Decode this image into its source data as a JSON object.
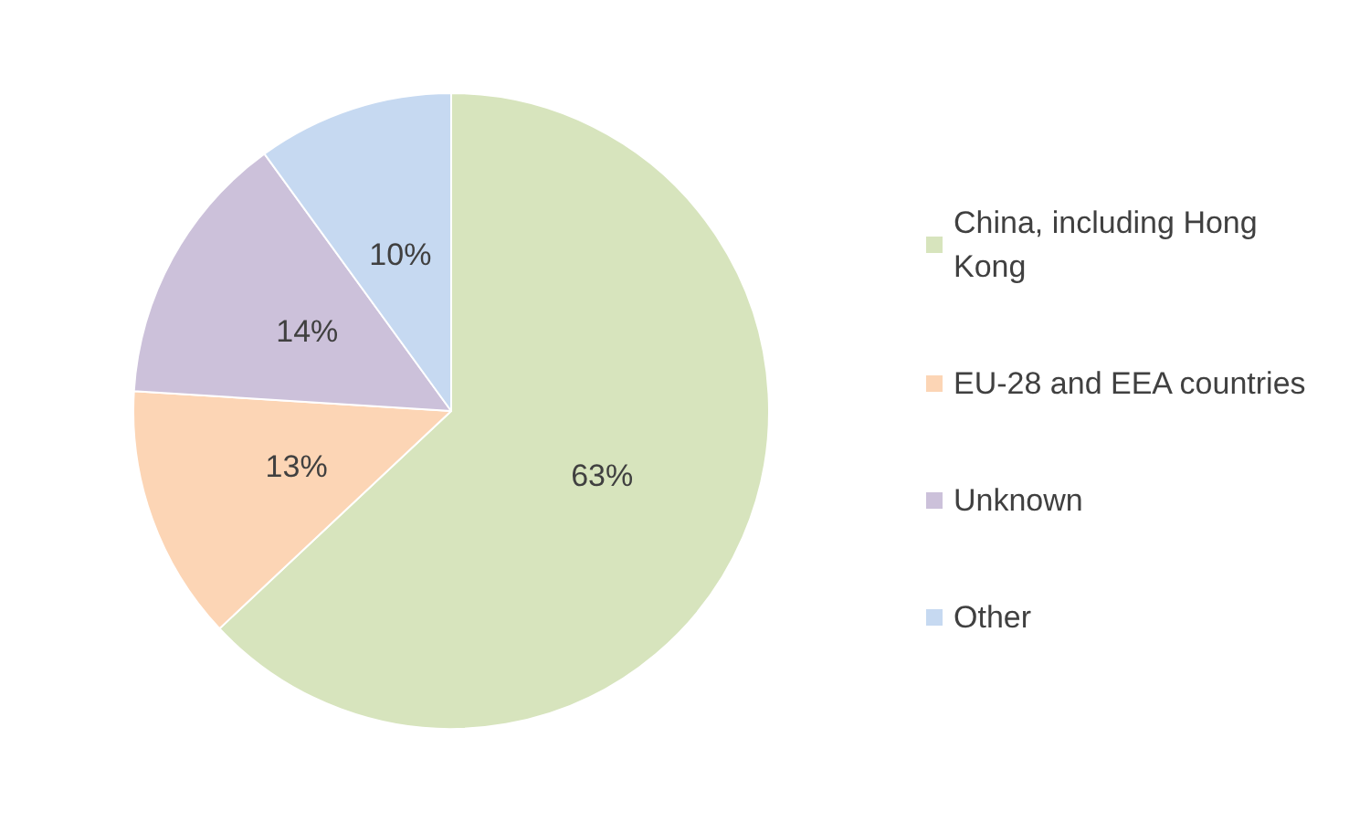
{
  "chart_data": {
    "type": "pie",
    "categories": [
      "China, including Hong Kong",
      "EU-28 and EEA countries",
      "Unknown",
      "Other"
    ],
    "values": [
      63,
      13,
      14,
      10
    ],
    "colors": [
      "#d7e4bd",
      "#fcd5b5",
      "#ccc1da",
      "#c6d9f1"
    ],
    "value_labels": [
      "63%",
      "13%",
      "14%",
      "10%"
    ],
    "legend": "right"
  }
}
